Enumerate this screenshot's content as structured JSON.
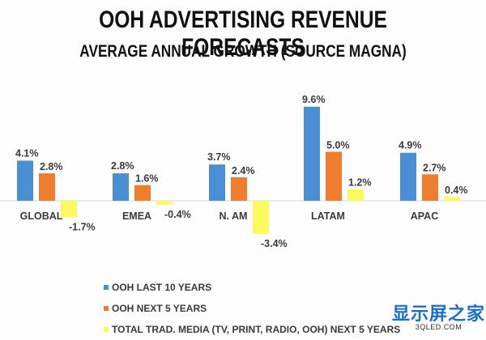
{
  "chart_data": {
    "type": "bar",
    "title": "OOH ADVERTISING REVENUE FORECASTS",
    "subtitle": "AVERAGE ANNUAL GROWTH (SOURCE MAGNA)",
    "xlabel": "",
    "ylabel": "",
    "ylim": [
      -4,
      10
    ],
    "grid": false,
    "legend_position": "bottom-left",
    "categories": [
      "GLOBAL",
      "EMEA",
      "N. AM",
      "LATAM",
      "APAC"
    ],
    "series": [
      {
        "name": "OOH LAST 10 YEARS",
        "color": "#4a8fd4",
        "values": [
          4.1,
          2.8,
          3.7,
          9.6,
          4.9
        ],
        "labels": [
          "4.1%",
          "2.8%",
          "3.7%",
          "9.6%",
          "4.9%"
        ]
      },
      {
        "name": "OOH NEXT 5 YEARS",
        "color": "#ef7d2f",
        "values": [
          2.8,
          1.6,
          2.4,
          5.0,
          2.7
        ],
        "labels": [
          "2.8%",
          "1.6%",
          "2.4%",
          "5.0%",
          "2.7%"
        ]
      },
      {
        "name": "TOTAL TRAD. MEDIA (TV, PRINT, RADIO, OOH) NEXT 5 YEARS",
        "color": "#fbfa5e",
        "values": [
          -1.7,
          -0.4,
          -3.4,
          1.2,
          0.4
        ],
        "labels": [
          "-1.7%",
          "-0.4%",
          "-3.4%",
          "1.2%",
          "0.4%"
        ]
      }
    ]
  },
  "watermark": {
    "cn": "显示屏之家",
    "en": "3QLED.COM"
  }
}
